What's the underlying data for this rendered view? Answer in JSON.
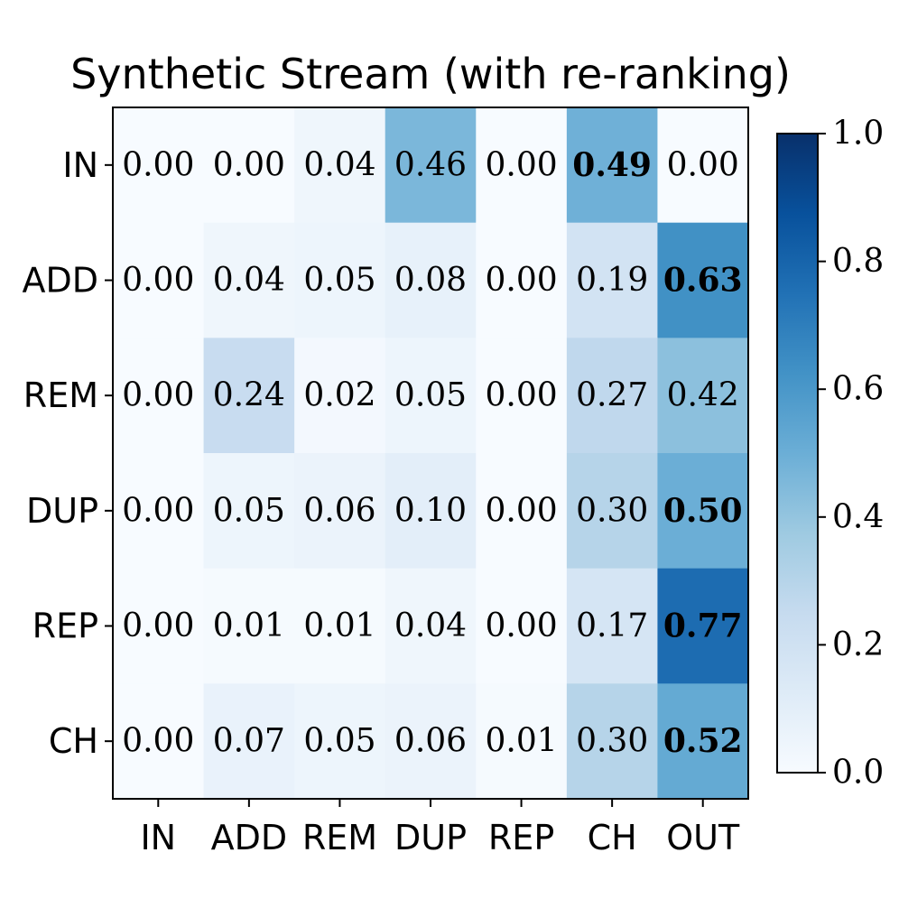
{
  "chart_data": {
    "type": "heatmap",
    "title": "Synthetic Stream (with re-ranking)",
    "xlabel": "",
    "ylabel": "",
    "x_categories": [
      "IN",
      "ADD",
      "REM",
      "DUP",
      "REP",
      "CH",
      "OUT"
    ],
    "y_categories": [
      "IN",
      "ADD",
      "REM",
      "DUP",
      "REP",
      "CH"
    ],
    "values": [
      [
        0.0,
        0.0,
        0.04,
        0.46,
        0.0,
        0.49,
        0.0
      ],
      [
        0.0,
        0.04,
        0.05,
        0.08,
        0.0,
        0.19,
        0.63
      ],
      [
        0.0,
        0.24,
        0.02,
        0.05,
        0.0,
        0.27,
        0.42
      ],
      [
        0.0,
        0.05,
        0.06,
        0.1,
        0.0,
        0.3,
        0.5
      ],
      [
        0.0,
        0.01,
        0.01,
        0.04,
        0.0,
        0.17,
        0.77
      ],
      [
        0.0,
        0.07,
        0.05,
        0.06,
        0.01,
        0.3,
        0.52
      ]
    ],
    "value_labels": [
      [
        "0.00",
        "0.00",
        "0.04",
        "0.46",
        "0.00",
        "0.49",
        "0.00"
      ],
      [
        "0.00",
        "0.04",
        "0.05",
        "0.08",
        "0.00",
        "0.19",
        "0.63"
      ],
      [
        "0.00",
        "0.24",
        "0.02",
        "0.05",
        "0.00",
        "0.27",
        "0.42"
      ],
      [
        "0.00",
        "0.05",
        "0.06",
        "0.10",
        "0.00",
        "0.30",
        "0.50"
      ],
      [
        "0.00",
        "0.01",
        "0.01",
        "0.04",
        "0.00",
        "0.17",
        "0.77"
      ],
      [
        "0.00",
        "0.07",
        "0.05",
        "0.06",
        "0.01",
        "0.30",
        "0.52"
      ]
    ],
    "bold_cells": [
      [
        0,
        5
      ],
      [
        1,
        6
      ],
      [
        3,
        6
      ],
      [
        4,
        6
      ],
      [
        5,
        6
      ]
    ],
    "colormap": "Blues",
    "colorbar": {
      "range": [
        0.0,
        1.0
      ],
      "ticks": [
        0.0,
        0.2,
        0.4,
        0.6,
        0.8,
        1.0
      ],
      "tick_labels": [
        "0.0",
        "0.2",
        "0.4",
        "0.6",
        "0.8",
        "1.0"
      ],
      "placement": "right"
    }
  }
}
